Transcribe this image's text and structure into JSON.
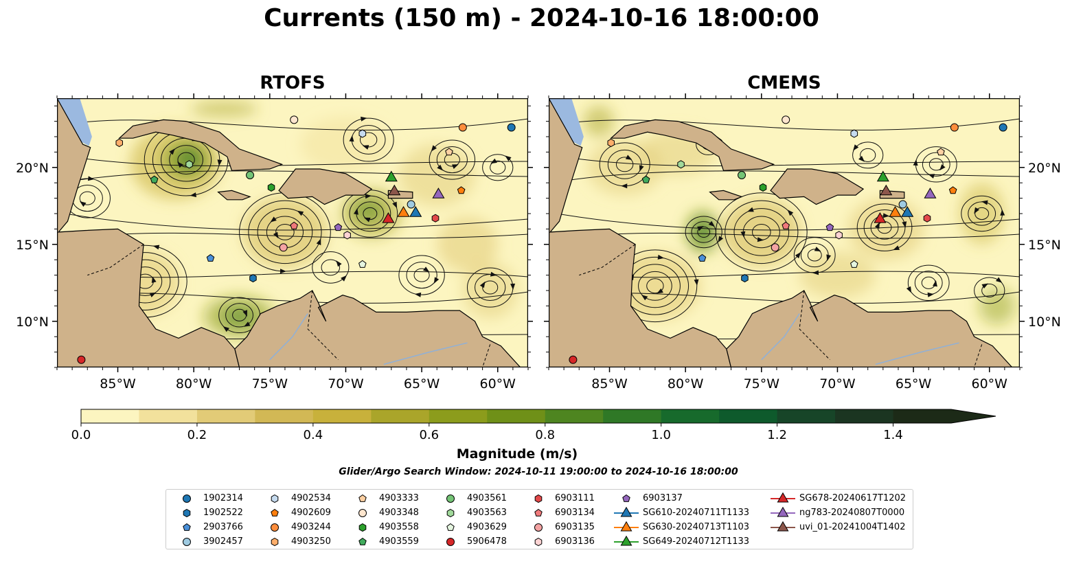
{
  "title": "Currents (150 m) - 2024-10-16 18:00:00",
  "panels": [
    {
      "id": "rtofs",
      "title": "RTOFS"
    },
    {
      "id": "cmems",
      "title": "CMEMS"
    }
  ],
  "map": {
    "lon_range": [
      -89,
      -58
    ],
    "lat_range": [
      7,
      24.5
    ],
    "lon_ticks": [
      "85°W",
      "80°W",
      "75°W",
      "70°W",
      "65°W",
      "60°W"
    ],
    "lon_tick_values": [
      -85,
      -80,
      -75,
      -70,
      -65,
      -60
    ],
    "lat_ticks": [
      "20°N",
      "15°N",
      "10°N"
    ],
    "lat_tick_values": [
      20,
      15,
      10
    ],
    "colors": {
      "land": "#cfb28a",
      "water": "#9bb9e0",
      "low_speed": "#fcf5c0",
      "high_speed": "#1c2a17"
    }
  },
  "colorbar": {
    "label": "Magnitude (m/s)",
    "min": 0.0,
    "max": 1.5,
    "extend": "max",
    "tick_values": [
      0,
      0.2,
      0.4,
      0.6,
      0.8,
      1.0,
      1.2,
      1.4
    ],
    "ticks": [
      "0.0",
      "0.2",
      "0.4",
      "0.6",
      "0.8",
      "1.0",
      "1.2",
      "1.4"
    ],
    "colors": [
      "#fcf5c0",
      "#f2e19c",
      "#e2cb77",
      "#d2b855",
      "#c8b13b",
      "#aaa52a",
      "#8c9c1c",
      "#6f9018",
      "#4e8520",
      "#2f7826",
      "#176a2c",
      "#0e5a2c",
      "#174528",
      "#1b3521",
      "#1c2a17"
    ]
  },
  "search_window": "Glider/Argo Search Window: 2024-10-11 19:00:00 to 2024-10-16 18:00:00",
  "legend": [
    {
      "label": "1902314",
      "marker": "circle",
      "color": "#1f77b4"
    },
    {
      "label": "1902522",
      "marker": "hexagon",
      "color": "#1f77b4"
    },
    {
      "label": "2903766",
      "marker": "pentagon",
      "color": "#4a90d9"
    },
    {
      "label": "3902457",
      "marker": "circle",
      "color": "#9ecae1"
    },
    {
      "label": "4902534",
      "marker": "hexagon",
      "color": "#c6dbef"
    },
    {
      "label": "4902609",
      "marker": "pentagon",
      "color": "#ff7f0e"
    },
    {
      "label": "4903244",
      "marker": "circle",
      "color": "#fd8d3c"
    },
    {
      "label": "4903250",
      "marker": "hexagon",
      "color": "#fdae6b"
    },
    {
      "label": "4903333",
      "marker": "pentagon",
      "color": "#fdd0a2"
    },
    {
      "label": "4903348",
      "marker": "circle",
      "color": "#fee6ce"
    },
    {
      "label": "4903558",
      "marker": "hexagon",
      "color": "#2ca02c"
    },
    {
      "label": "4903559",
      "marker": "pentagon",
      "color": "#41ab5d"
    },
    {
      "label": "4903561",
      "marker": "circle",
      "color": "#74c476"
    },
    {
      "label": "4903563",
      "marker": "hexagon",
      "color": "#a1d99b"
    },
    {
      "label": "4903629",
      "marker": "pentagon",
      "color": "#e5f5e0"
    },
    {
      "label": "5906478",
      "marker": "circle",
      "color": "#d62728"
    },
    {
      "label": "6903111",
      "marker": "hexagon",
      "color": "#e3494a"
    },
    {
      "label": "6903134",
      "marker": "pentagon",
      "color": "#f07a7b"
    },
    {
      "label": "6903135",
      "marker": "circle",
      "color": "#f4a3a3"
    },
    {
      "label": "6903136",
      "marker": "hexagon",
      "color": "#fcd3d3"
    },
    {
      "label": "6903137",
      "marker": "pentagon",
      "color": "#9467bd"
    },
    {
      "label": "SG610-20240711T1133",
      "marker": "triangle",
      "color": "#1f77b4"
    },
    {
      "label": "SG630-20240713T1103",
      "marker": "triangle",
      "color": "#ff7f0e"
    },
    {
      "label": "SG649-20240712T1133",
      "marker": "triangle",
      "color": "#2ca02c"
    },
    {
      "label": "SG678-20240617T1202",
      "marker": "triangle",
      "color": "#d62728"
    },
    {
      "label": "ng783-20240807T0000",
      "marker": "triangle",
      "color": "#9467bd"
    },
    {
      "label": "uvi_01-20241004T1402",
      "marker": "triangle",
      "color": "#8c564b"
    }
  ],
  "platforms": {
    "rtofs": [
      {
        "id": "1902314",
        "lon": -59.1,
        "lat": 22.6
      },
      {
        "id": "1902522",
        "lon": -76.1,
        "lat": 12.8
      },
      {
        "id": "2903766",
        "lon": -78.9,
        "lat": 14.1
      },
      {
        "id": "3902457",
        "lon": -65.7,
        "lat": 17.6
      },
      {
        "id": "4902534",
        "lon": -68.9,
        "lat": 22.2
      },
      {
        "id": "4902609",
        "lon": -62.4,
        "lat": 18.5
      },
      {
        "id": "4903244",
        "lon": -62.3,
        "lat": 22.6
      },
      {
        "id": "4903250",
        "lon": -84.9,
        "lat": 21.6
      },
      {
        "id": "4903333",
        "lon": -63.2,
        "lat": 21.0
      },
      {
        "id": "4903348",
        "lon": -73.4,
        "lat": 23.1
      },
      {
        "id": "4903558",
        "lon": -74.9,
        "lat": 18.7
      },
      {
        "id": "4903559",
        "lon": -82.6,
        "lat": 19.2
      },
      {
        "id": "4903561",
        "lon": -76.3,
        "lat": 19.5
      },
      {
        "id": "4903563",
        "lon": -80.3,
        "lat": 20.2
      },
      {
        "id": "4903629",
        "lon": -68.9,
        "lat": 13.7
      },
      {
        "id": "5906478",
        "lon": -87.4,
        "lat": 7.5
      },
      {
        "id": "6903111",
        "lon": -64.1,
        "lat": 16.7
      },
      {
        "id": "6903134",
        "lon": -73.4,
        "lat": 16.2
      },
      {
        "id": "6903135",
        "lon": -74.1,
        "lat": 14.8
      },
      {
        "id": "6903136",
        "lon": -69.9,
        "lat": 15.6
      },
      {
        "id": "6903137",
        "lon": -70.5,
        "lat": 16.1
      },
      {
        "id": "SG610-20240711T1133",
        "lon": -65.4,
        "lat": 17.1
      },
      {
        "id": "SG630-20240713T1103",
        "lon": -66.2,
        "lat": 17.1
      },
      {
        "id": "SG649-20240712T1133",
        "lon": -67.0,
        "lat": 19.4
      },
      {
        "id": "SG678-20240617T1202",
        "lon": -67.2,
        "lat": 16.7
      },
      {
        "id": "ng783-20240807T0000",
        "lon": -63.9,
        "lat": 18.3
      },
      {
        "id": "uvi_01-20241004T1402",
        "lon": -66.8,
        "lat": 18.5
      }
    ],
    "cmems": [
      {
        "id": "1902314",
        "lon": -59.1,
        "lat": 22.6
      },
      {
        "id": "1902522",
        "lon": -76.1,
        "lat": 12.8
      },
      {
        "id": "2903766",
        "lon": -78.9,
        "lat": 14.1
      },
      {
        "id": "3902457",
        "lon": -65.7,
        "lat": 17.6
      },
      {
        "id": "4902534",
        "lon": -68.9,
        "lat": 22.2
      },
      {
        "id": "4902609",
        "lon": -62.4,
        "lat": 18.5
      },
      {
        "id": "4903244",
        "lon": -62.3,
        "lat": 22.6
      },
      {
        "id": "4903250",
        "lon": -84.9,
        "lat": 21.6
      },
      {
        "id": "4903333",
        "lon": -63.2,
        "lat": 21.0
      },
      {
        "id": "4903348",
        "lon": -73.4,
        "lat": 23.1
      },
      {
        "id": "4903558",
        "lon": -74.9,
        "lat": 18.7
      },
      {
        "id": "4903559",
        "lon": -82.6,
        "lat": 19.2
      },
      {
        "id": "4903561",
        "lon": -76.3,
        "lat": 19.5
      },
      {
        "id": "4903563",
        "lon": -80.3,
        "lat": 20.2
      },
      {
        "id": "4903629",
        "lon": -68.9,
        "lat": 13.7
      },
      {
        "id": "5906478",
        "lon": -87.4,
        "lat": 7.5
      },
      {
        "id": "6903111",
        "lon": -64.1,
        "lat": 16.7
      },
      {
        "id": "6903134",
        "lon": -73.4,
        "lat": 16.2
      },
      {
        "id": "6903135",
        "lon": -74.1,
        "lat": 14.8
      },
      {
        "id": "6903136",
        "lon": -69.9,
        "lat": 15.6
      },
      {
        "id": "6903137",
        "lon": -70.5,
        "lat": 16.1
      },
      {
        "id": "SG610-20240711T1133",
        "lon": -65.4,
        "lat": 17.1
      },
      {
        "id": "SG630-20240713T1103",
        "lon": -66.2,
        "lat": 17.1
      },
      {
        "id": "SG649-20240712T1133",
        "lon": -67.0,
        "lat": 19.4
      },
      {
        "id": "SG678-20240617T1202",
        "lon": -67.2,
        "lat": 16.7
      },
      {
        "id": "ng783-20240807T0000",
        "lon": -63.9,
        "lat": 18.3
      },
      {
        "id": "uvi_01-20241004T1402",
        "lon": -66.8,
        "lat": 18.5
      }
    ]
  }
}
